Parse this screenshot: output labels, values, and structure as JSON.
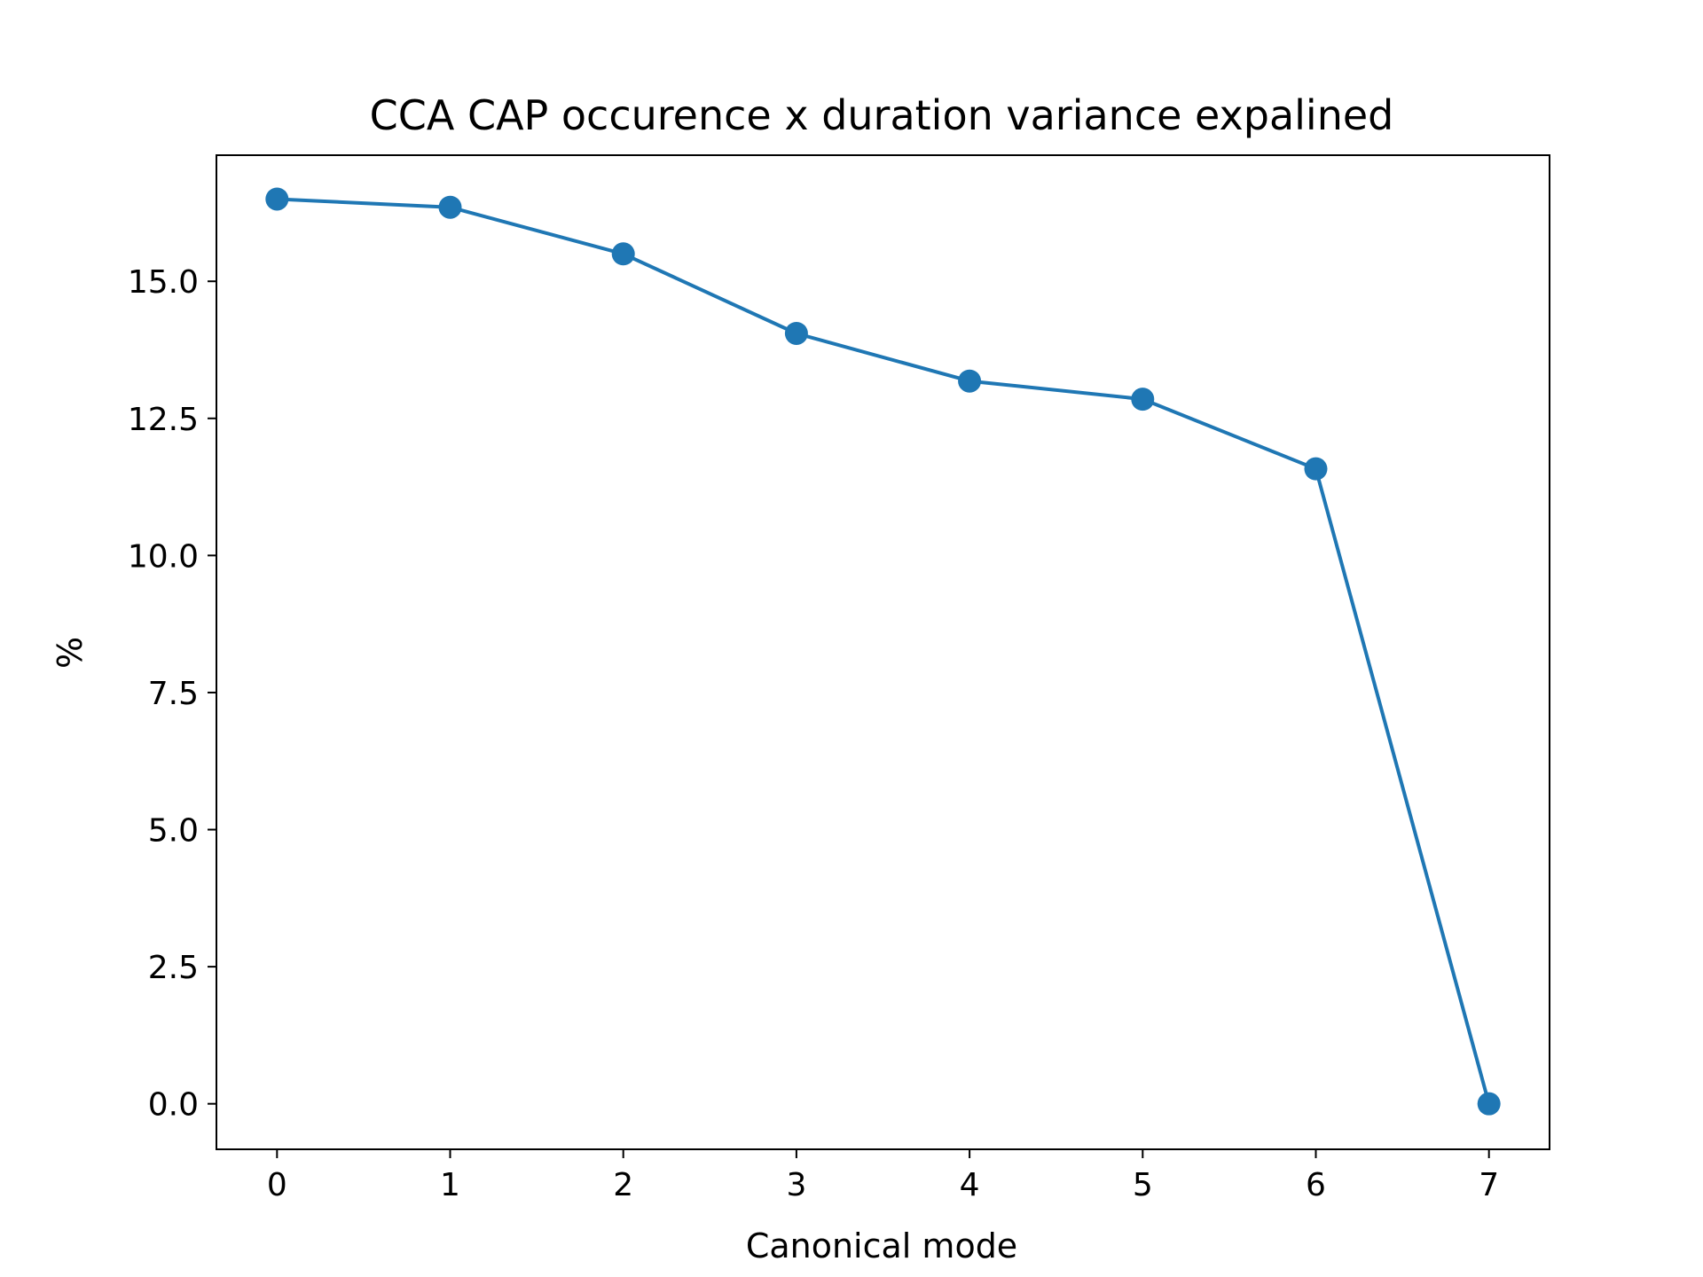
{
  "chart_data": {
    "type": "line",
    "title": "CCA CAP occurence x duration variance expalined",
    "xlabel": "Canonical mode",
    "ylabel": "%",
    "x": [
      0,
      1,
      2,
      3,
      4,
      5,
      6,
      7
    ],
    "series": [
      {
        "values": [
          16.5,
          16.35,
          15.5,
          14.05,
          13.18,
          12.85,
          11.58,
          0.0
        ],
        "color": "#1f77b4",
        "marker": "circle"
      }
    ],
    "xlim": [
      -0.35,
      7.35
    ],
    "ylim": [
      -0.83,
      17.3
    ],
    "xticks": [
      0,
      1,
      2,
      3,
      4,
      5,
      6,
      7
    ],
    "xtick_labels": [
      "0",
      "1",
      "2",
      "3",
      "4",
      "5",
      "6",
      "7"
    ],
    "yticks": [
      0.0,
      2.5,
      5.0,
      7.5,
      10.0,
      12.5,
      15.0
    ],
    "ytick_labels": [
      "0.0",
      "2.5",
      "5.0",
      "7.5",
      "10.0",
      "12.5",
      "15.0"
    ],
    "grid": false,
    "legend": "none"
  }
}
